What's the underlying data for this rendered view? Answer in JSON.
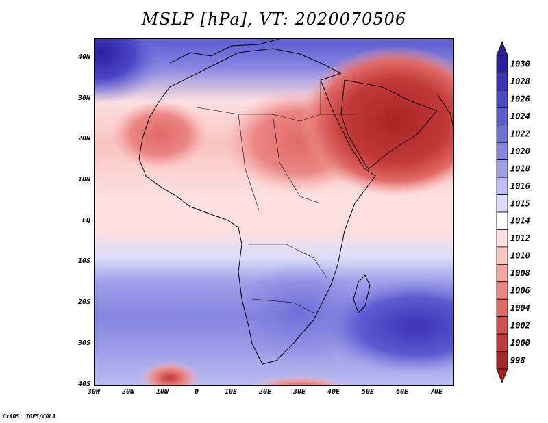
{
  "title": "MSLP [hPa], VT: 2020070506",
  "credit": "GrADS: IGES/COLA",
  "axes": {
    "lat_labels": [
      "40N",
      "30N",
      "20N",
      "10N",
      "EQ",
      "10S",
      "20S",
      "30S",
      "40S"
    ],
    "lon_labels": [
      "30W",
      "20W",
      "10W",
      "0",
      "10E",
      "20E",
      "30E",
      "40E",
      "50E",
      "60E",
      "70E"
    ]
  },
  "colorbar": {
    "labels": [
      "1030",
      "1028",
      "1026",
      "1024",
      "1022",
      "1020",
      "1018",
      "1016",
      "1015",
      "1014",
      "1012",
      "1010",
      "1008",
      "1006",
      "1004",
      "1002",
      "1000",
      "998"
    ],
    "colors": [
      "#2a1f9e",
      "#3b32b8",
      "#4b46c6",
      "#5c5ad0",
      "#6f6fd8",
      "#8585e0",
      "#9e9fe8",
      "#bcbdf2",
      "#dcdcfa",
      "#ffffff",
      "#fde0df",
      "#f9c4c2",
      "#f2a5a2",
      "#ea8683",
      "#e16a67",
      "#d4504d",
      "#c23a38",
      "#a82424"
    ]
  },
  "chart_data": {
    "type": "heatmap",
    "title": "MSLP [hPa], VT: 2020070506",
    "variable": "Mean sea level pressure",
    "units": "hPa",
    "valid_time": "2020070506",
    "lon_range": [
      -30,
      75
    ],
    "lat_range": [
      -40,
      45
    ],
    "x_ticks": [
      "30W",
      "20W",
      "10W",
      "0",
      "10E",
      "20E",
      "30E",
      "40E",
      "50E",
      "60E",
      "70E"
    ],
    "y_ticks": [
      "40N",
      "30N",
      "20N",
      "10N",
      "EQ",
      "10S",
      "20S",
      "30S",
      "40S"
    ],
    "levels": [
      998,
      1000,
      1002,
      1004,
      1006,
      1008,
      1010,
      1012,
      1014,
      1015,
      1016,
      1018,
      1020,
      1022,
      1024,
      1026,
      1028,
      1030
    ]
  }
}
